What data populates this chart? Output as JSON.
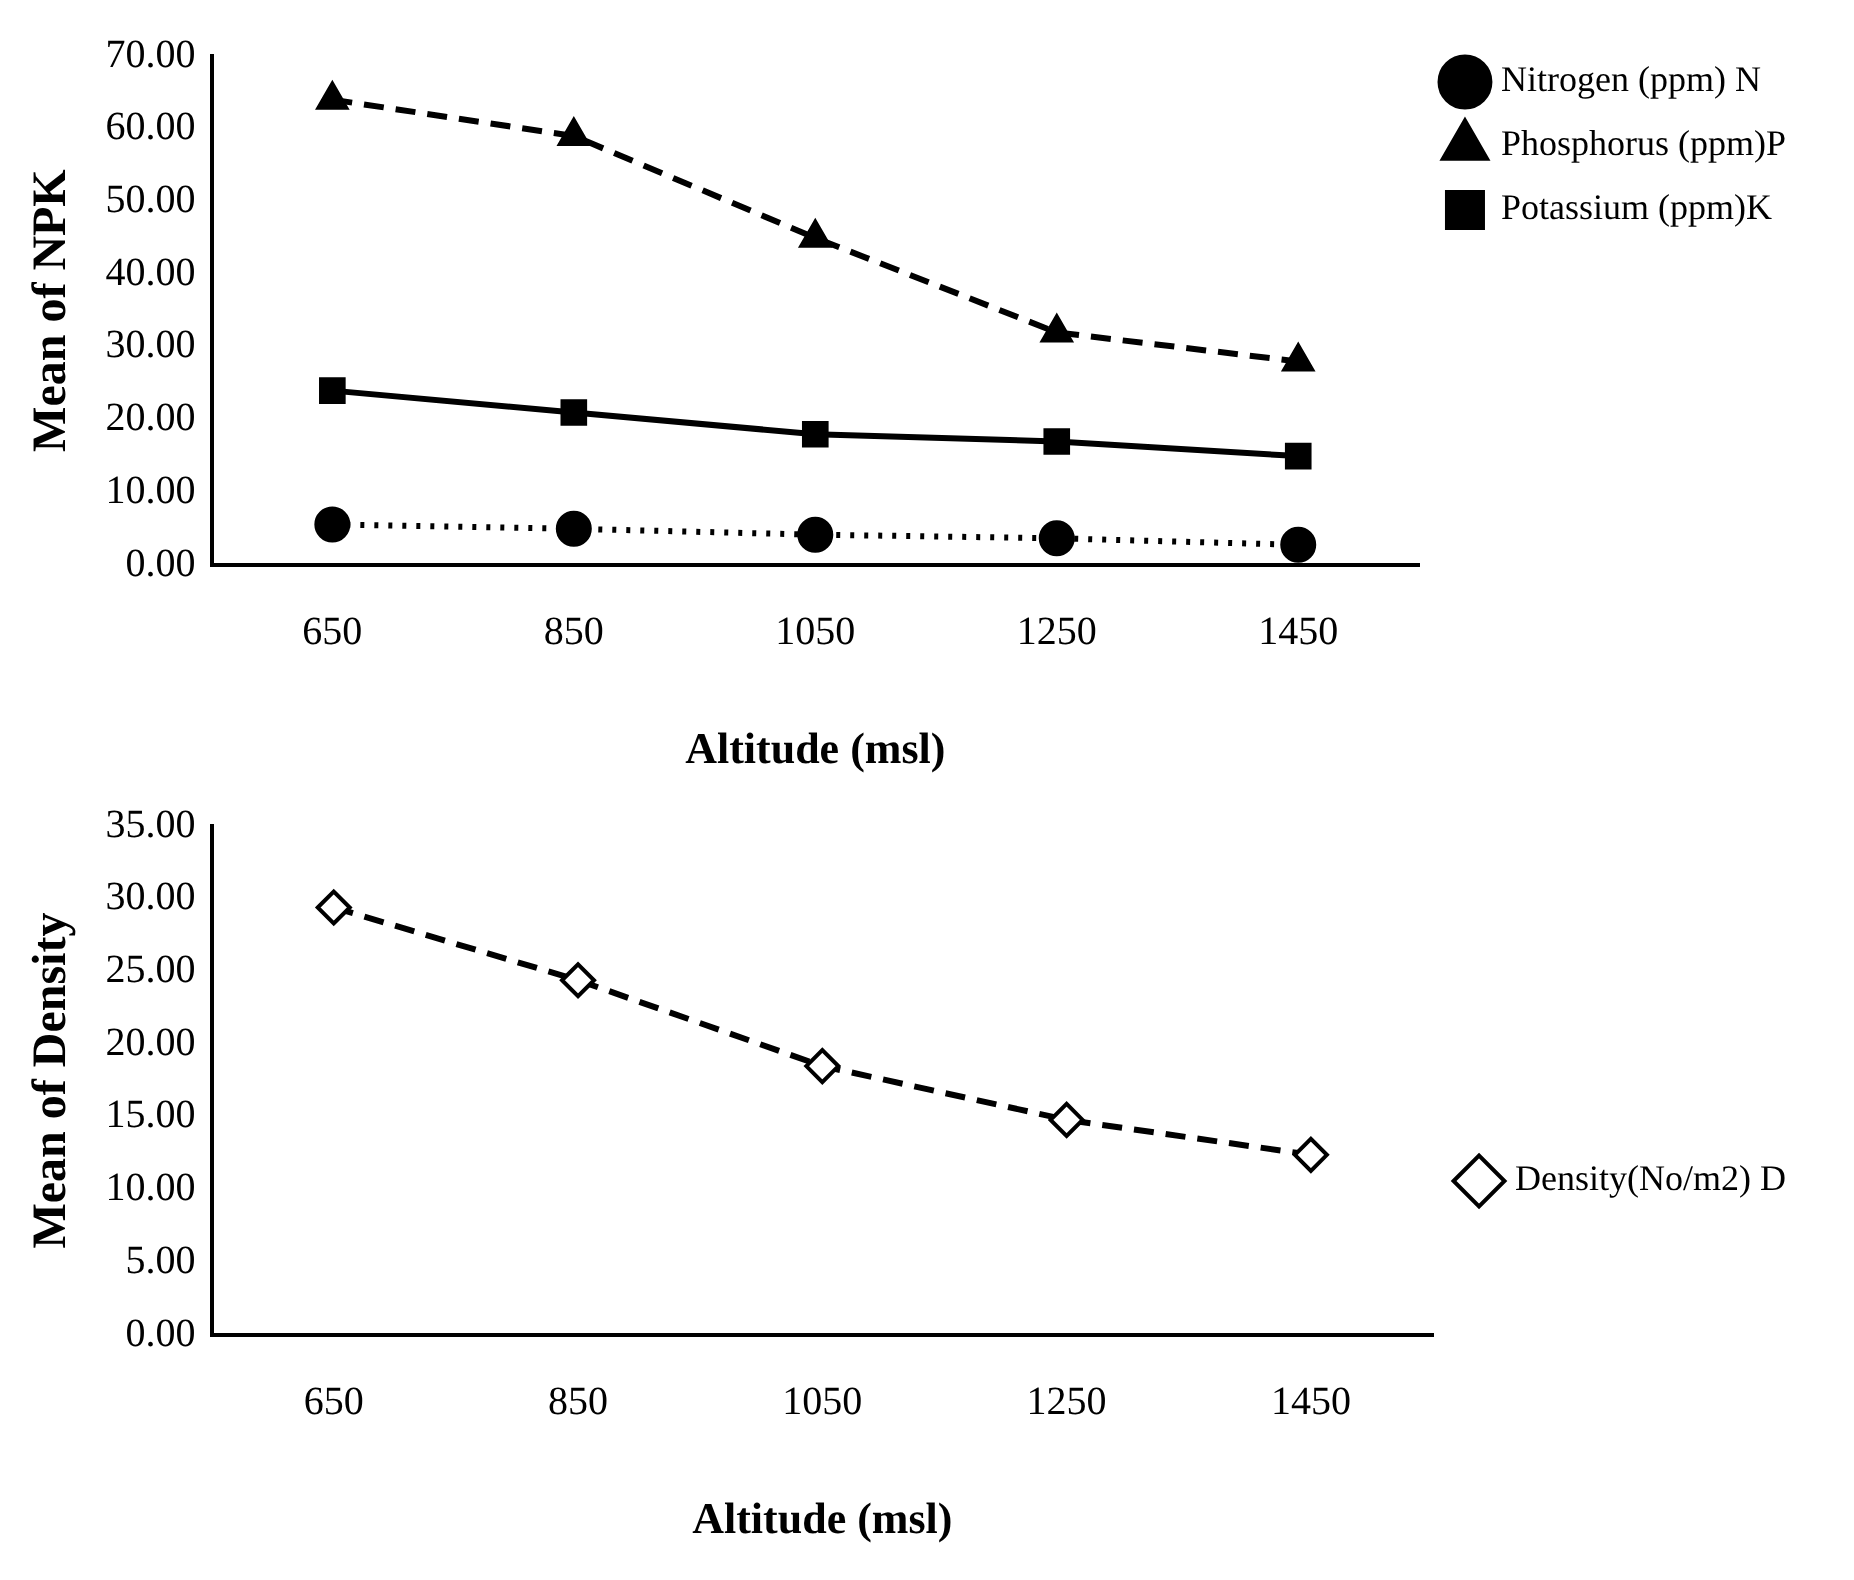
{
  "chart_data": [
    {
      "type": "line",
      "xlabel": "Altitude (msl)",
      "ylabel": "Mean of NPK",
      "categories": [
        "650",
        "850",
        "1050",
        "1250",
        "1450"
      ],
      "ylim": [
        0,
        70
      ],
      "yticks": [
        {
          "value": 0,
          "label": "0.00"
        },
        {
          "value": 10,
          "label": "10.00"
        },
        {
          "value": 20,
          "label": "20.00"
        },
        {
          "value": 30,
          "label": "30.00"
        },
        {
          "value": 40,
          "label": "40.00"
        },
        {
          "value": 50,
          "label": "50.00"
        },
        {
          "value": 60,
          "label": "60.00"
        },
        {
          "value": 70,
          "label": "70.00"
        }
      ],
      "grid": false,
      "legend": "top right",
      "series": [
        {
          "name": "Nitrogen (ppm) N",
          "color": "#000000",
          "marker": "circle",
          "line_style": "dotted",
          "values": [
            5.6,
            5,
            4.2,
            3.7,
            2.8
          ]
        },
        {
          "name": "Phosphorus (ppm)P",
          "color": "#000000",
          "marker": "triangle",
          "line_style": "dashed",
          "values": [
            64,
            59,
            45,
            32,
            28
          ]
        },
        {
          "name": "Potassium (ppm)K",
          "color": "#000000",
          "marker": "square",
          "line_style": "solid",
          "values": [
            24,
            21,
            18,
            17,
            15
          ]
        }
      ]
    },
    {
      "type": "line",
      "xlabel": "Altitude (msl)",
      "ylabel": "Mean of Density",
      "categories": [
        "650",
        "850",
        "1050",
        "1250",
        "1450"
      ],
      "ylim": [
        0,
        35
      ],
      "yticks": [
        {
          "value": 0,
          "label": "0.00"
        },
        {
          "value": 5,
          "label": "5.00"
        },
        {
          "value": 10,
          "label": "10.00"
        },
        {
          "value": 15,
          "label": "15.00"
        },
        {
          "value": 20,
          "label": "20.00"
        },
        {
          "value": 25,
          "label": "25.00"
        },
        {
          "value": 30,
          "label": "30.00"
        },
        {
          "value": 35,
          "label": "35.00"
        }
      ],
      "grid": false,
      "legend": "right",
      "series": [
        {
          "name": "Density(No/m2) D",
          "color": "#000000",
          "marker": "diamond",
          "line_style": "dashed",
          "values": [
            29.4,
            24.4,
            18.5,
            14.8,
            12.4
          ]
        }
      ]
    }
  ]
}
